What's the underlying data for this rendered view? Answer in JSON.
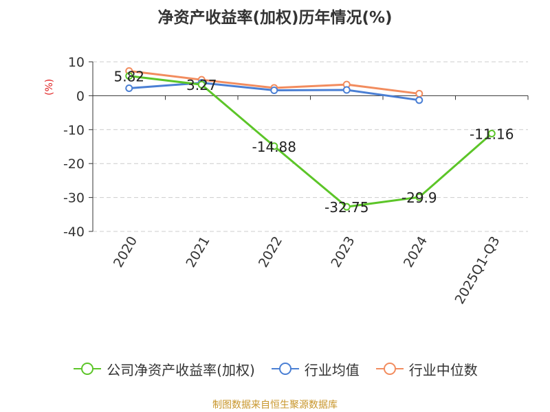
{
  "title": "净资产收益率(加权)历年情况(%)",
  "source": "制图数据来自恒生聚源数据库",
  "ylabel_unit": "(%)",
  "colors": {
    "company": "#5cc528",
    "industry_avg": "#4a7fd4",
    "industry_median": "#f28c5e",
    "grid": "#cccccc",
    "axis": "#333333",
    "source_text": "#c8962b",
    "unit_text": "#e02020"
  },
  "chart_data": {
    "type": "line",
    "title": "净资产收益率(加权)历年情况(%)",
    "ylabel": "(%)",
    "xlabel": "",
    "categories": [
      "2020",
      "2021",
      "2022",
      "2023",
      "2024",
      "2025Q1-Q3"
    ],
    "ylim": [
      -40,
      10
    ],
    "yticks": [
      10,
      0,
      -10,
      -20,
      -30,
      -40
    ],
    "grid": true,
    "legend_position": "bottom",
    "series": [
      {
        "name": "公司净资产收益率(加权)",
        "key": "company",
        "values": [
          5.82,
          3.27,
          -14.88,
          -32.75,
          -29.9,
          -11.16
        ],
        "labels": [
          "5.82",
          "3.27",
          "-14.88",
          "-32.75",
          "-29.9",
          "-11.16"
        ]
      },
      {
        "name": "行业均值",
        "key": "industry_avg",
        "values": [
          2.2,
          3.8,
          1.6,
          1.7,
          -1.3,
          null
        ]
      },
      {
        "name": "行业中位数",
        "key": "industry_median",
        "values": [
          7.3,
          4.7,
          2.3,
          3.3,
          0.6,
          null
        ]
      }
    ]
  }
}
